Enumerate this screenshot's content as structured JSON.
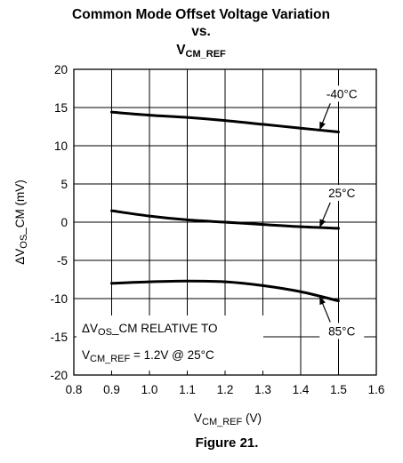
{
  "chart_data": {
    "type": "line",
    "title": {
      "line1": "Common Mode Offset Voltage Variation",
      "line2": "vs.",
      "line3_main": "V",
      "line3_sub": "CM_REF"
    },
    "xlabel": {
      "main": "V",
      "sub": "CM_REF",
      "rest": " (V)"
    },
    "ylabel": {
      "prefix": "ΔV",
      "sub": "OS",
      "rest": "_CM (mV)"
    },
    "xlim": [
      0.8,
      1.6
    ],
    "ylim": [
      -20,
      20
    ],
    "xticks": [
      "0.8",
      "0.9",
      "1.0",
      "1.1",
      "1.2",
      "1.3",
      "1.4",
      "1.5",
      "1.6"
    ],
    "yticks": [
      "20",
      "15",
      "10",
      "5",
      "0",
      "-5",
      "-10",
      "-15",
      "-20"
    ],
    "grid": true,
    "series": [
      {
        "name": "-40°C",
        "x": [
          0.9,
          1.0,
          1.1,
          1.2,
          1.3,
          1.4,
          1.5
        ],
        "y": [
          14.4,
          14.0,
          13.7,
          13.3,
          12.8,
          12.3,
          11.8
        ]
      },
      {
        "name": "25°C",
        "x": [
          0.9,
          1.0,
          1.1,
          1.2,
          1.3,
          1.4,
          1.5
        ],
        "y": [
          1.5,
          0.8,
          0.3,
          0.0,
          -0.3,
          -0.6,
          -0.8
        ]
      },
      {
        "name": "85°C",
        "x": [
          0.9,
          1.0,
          1.1,
          1.2,
          1.3,
          1.4,
          1.5
        ],
        "y": [
          -8.0,
          -7.8,
          -7.7,
          -7.8,
          -8.3,
          -9.1,
          -10.3
        ]
      }
    ],
    "annotation": {
      "line1_prefix": "ΔV",
      "line1_sub": "OS",
      "line1_rest": "_CM RELATIVE TO",
      "line2_main": "V",
      "line2_sub": "CM_REF",
      "line2_rest": " = 1.2V @ 25°C"
    },
    "figure_caption": "Figure 21."
  }
}
